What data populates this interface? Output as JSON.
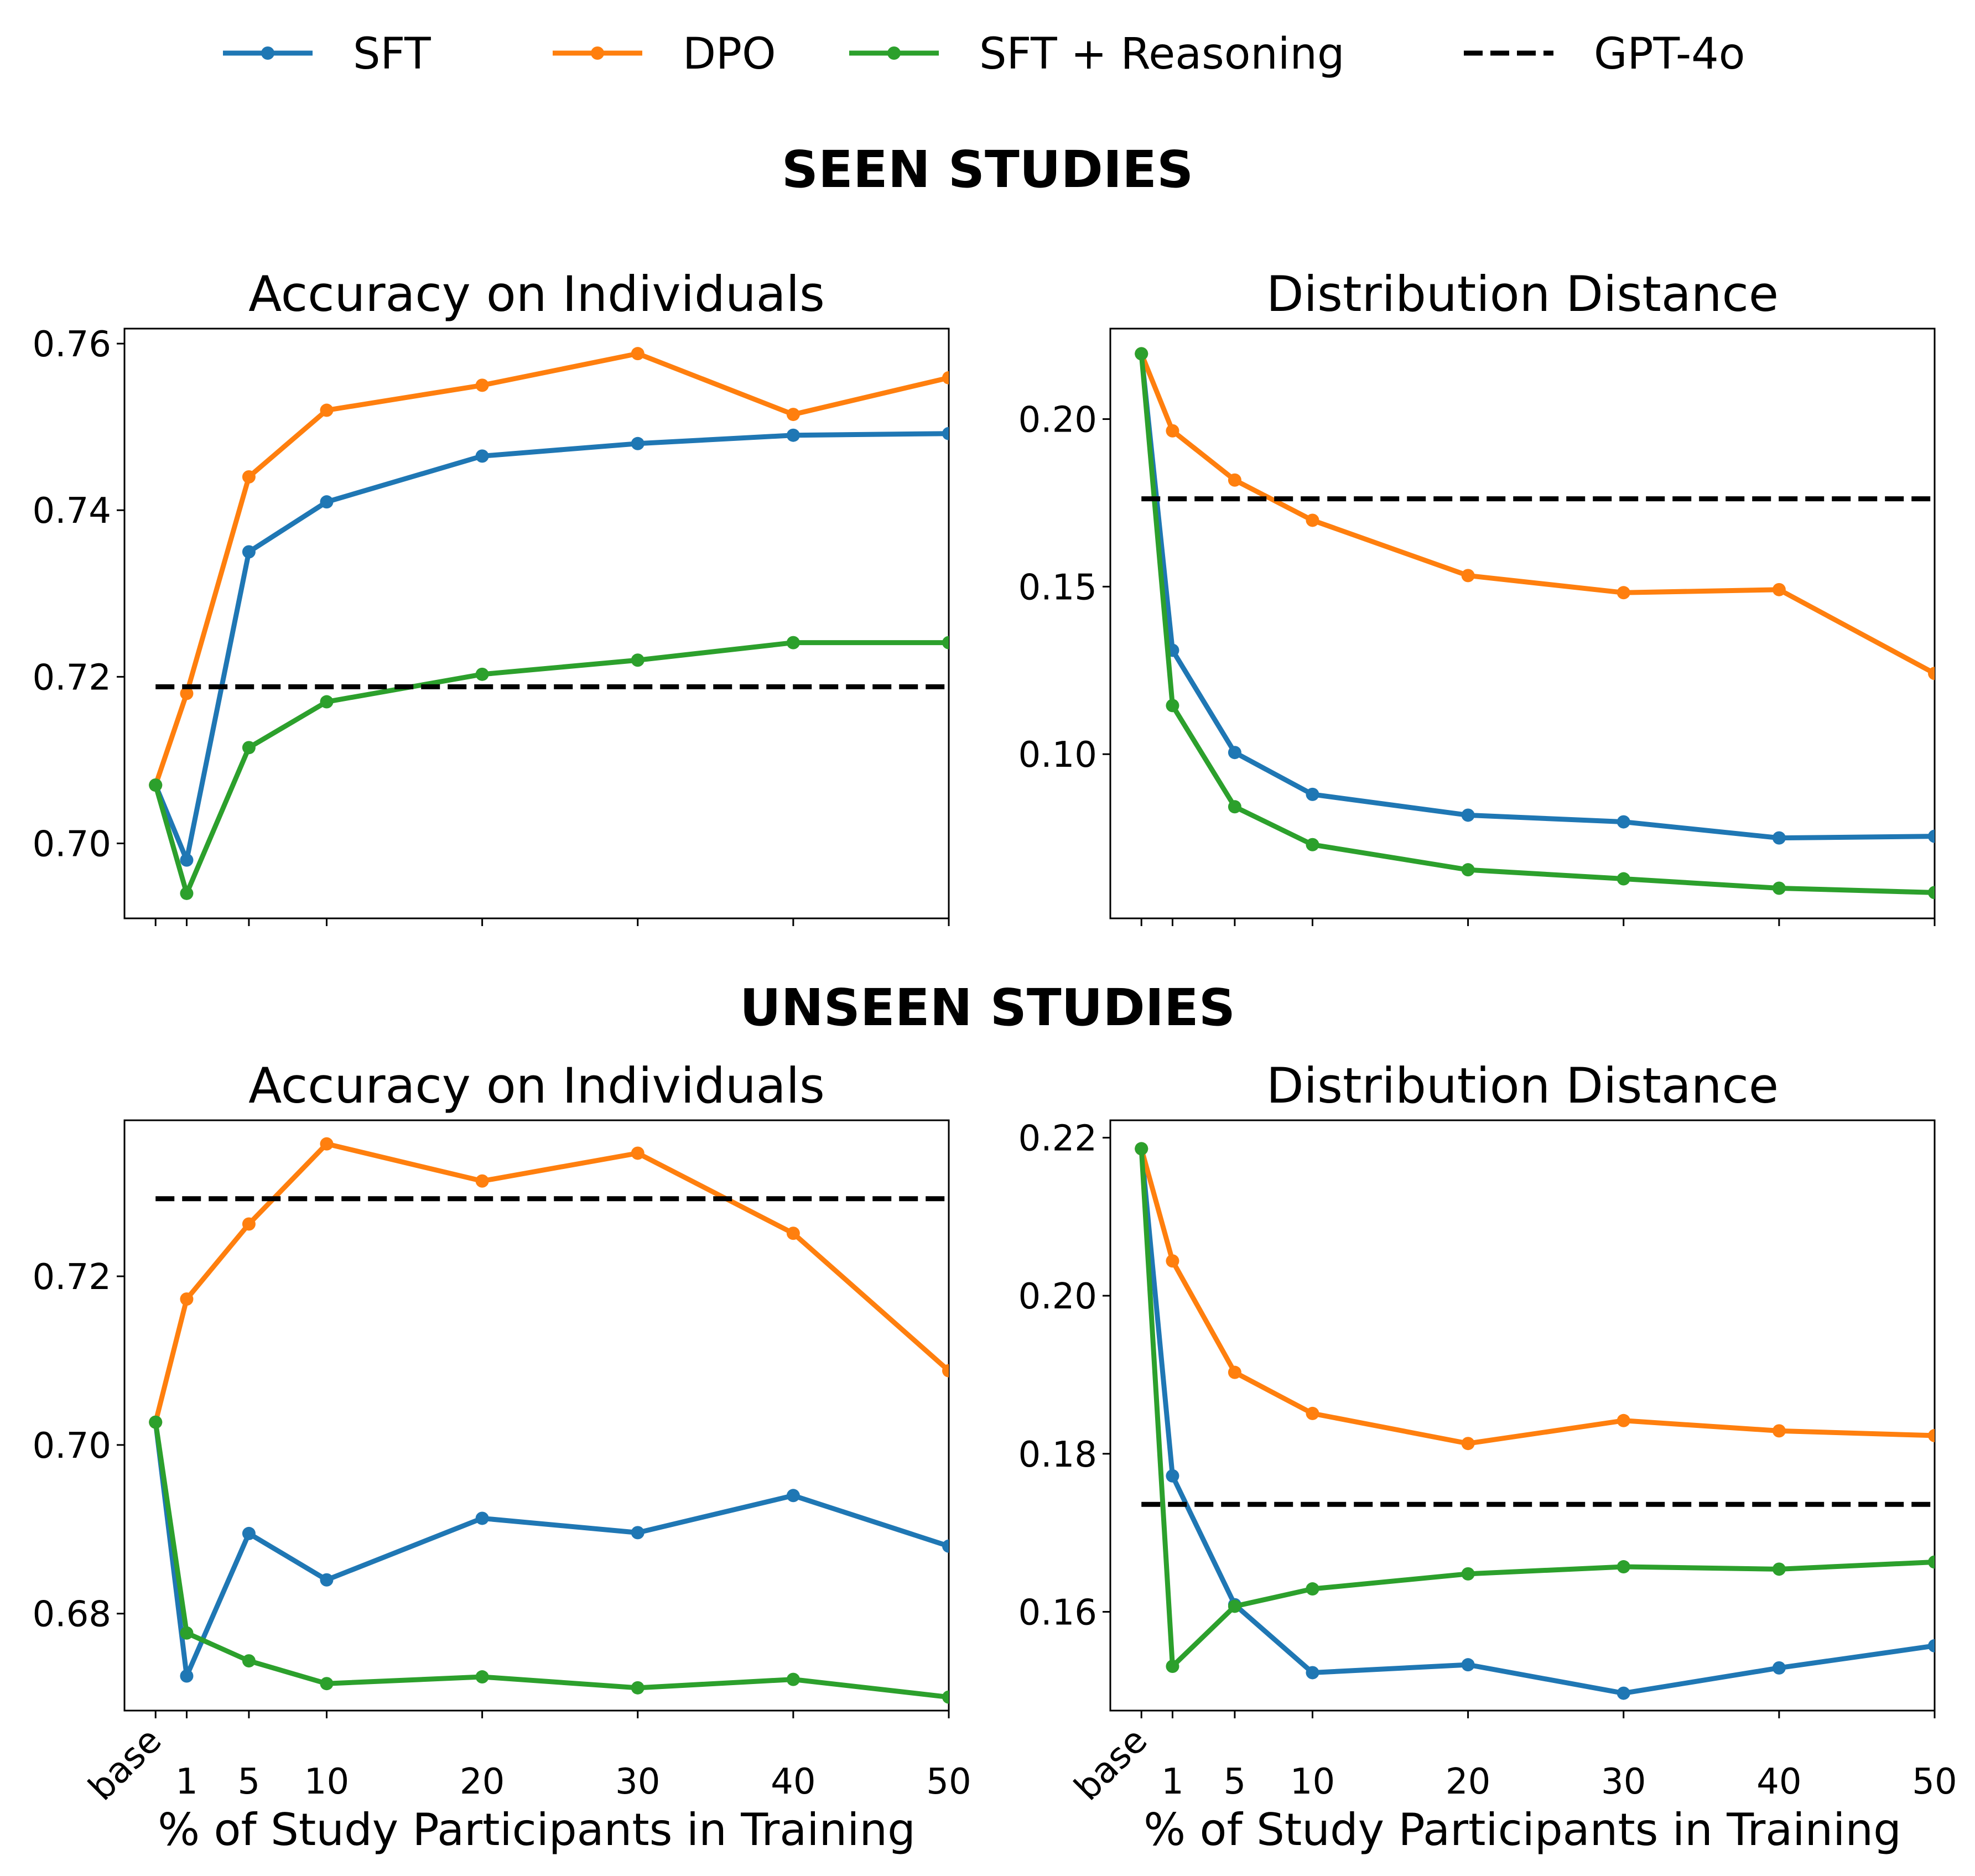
{
  "legend": [
    {
      "name": "SFT",
      "color": "#1f77b4",
      "style": "solid-marker"
    },
    {
      "name": "DPO",
      "color": "#ff7f0e",
      "style": "solid-marker"
    },
    {
      "name": "SFT + Reasoning",
      "color": "#2ca02c",
      "style": "solid-marker"
    },
    {
      "name": "GPT-4o",
      "color": "#000000",
      "style": "dashed"
    }
  ],
  "sections": {
    "seen": "SEEN STUDIES",
    "unseen": "UNSEEN STUDIES"
  },
  "shared_x": {
    "label": "% of Study Participants in Training",
    "tick_labels": [
      "base",
      "1",
      "5",
      "10",
      "20",
      "30",
      "40",
      "50"
    ],
    "tick_values": [
      -1,
      1,
      5,
      10,
      20,
      30,
      40,
      50
    ]
  },
  "chart_data": [
    {
      "id": "seen-accuracy",
      "section": "SEEN STUDIES",
      "type": "line",
      "title": "Accuracy on Individuals",
      "xlabel": "",
      "ylabel": "",
      "x": [
        -1,
        1,
        5,
        10,
        20,
        30,
        40,
        50
      ],
      "xlim": [
        -3,
        50
      ],
      "ylim": [
        0.691,
        0.7618
      ],
      "yticks": [
        0.7,
        0.72,
        0.74,
        0.76
      ],
      "ytick_labels": [
        "0.70",
        "0.72",
        "0.74",
        "0.76"
      ],
      "series": [
        {
          "name": "SFT",
          "values": [
            0.707,
            0.698,
            0.735,
            0.741,
            0.7465,
            0.748,
            0.749,
            0.7492
          ]
        },
        {
          "name": "DPO",
          "values": [
            0.707,
            0.718,
            0.744,
            0.752,
            0.755,
            0.7588,
            0.7515,
            0.7559
          ]
        },
        {
          "name": "SFT + Reasoning",
          "values": [
            0.707,
            0.694,
            0.7115,
            0.717,
            0.7203,
            0.722,
            0.7241,
            0.7241
          ]
        }
      ],
      "reference": {
        "name": "GPT-4o",
        "value": 0.7188
      }
    },
    {
      "id": "seen-distance",
      "section": "SEEN STUDIES",
      "type": "line",
      "title": "Distribution Distance",
      "xlabel": "",
      "ylabel": "",
      "x": [
        -1,
        1,
        5,
        10,
        20,
        30,
        40,
        50
      ],
      "xlim": [
        -3,
        50
      ],
      "ylim": [
        0.051,
        0.227
      ],
      "yticks": [
        0.1,
        0.15,
        0.2
      ],
      "ytick_labels": [
        "0.10",
        "0.15",
        "0.20"
      ],
      "series": [
        {
          "name": "SFT",
          "values": [
            0.2195,
            0.131,
            0.1005,
            0.088,
            0.0818,
            0.0798,
            0.075,
            0.0755
          ]
        },
        {
          "name": "DPO",
          "values": [
            0.2195,
            0.1965,
            0.1818,
            0.1698,
            0.1533,
            0.1482,
            0.1491,
            0.1241
          ]
        },
        {
          "name": "SFT + Reasoning",
          "values": [
            0.2195,
            0.1145,
            0.0843,
            0.073,
            0.0655,
            0.0628,
            0.06,
            0.0587
          ]
        }
      ],
      "reference": {
        "name": "GPT-4o",
        "value": 0.1762
      }
    },
    {
      "id": "unseen-accuracy",
      "section": "UNSEEN STUDIES",
      "type": "line",
      "title": "Accuracy on Individuals",
      "xlabel": "% of Study Participants in Training",
      "ylabel": "",
      "x": [
        -1,
        1,
        5,
        10,
        20,
        30,
        40,
        50
      ],
      "xlim": [
        -3,
        50
      ],
      "ylim": [
        0.6685,
        0.7385
      ],
      "yticks": [
        0.68,
        0.7,
        0.72
      ],
      "ytick_labels": [
        "0.68",
        "0.70",
        "0.72"
      ],
      "series": [
        {
          "name": "SFT",
          "values": [
            0.7027,
            0.6726,
            0.6895,
            0.684,
            0.6913,
            0.6896,
            0.694,
            0.688
          ]
        },
        {
          "name": "DPO",
          "values": [
            0.7027,
            0.7173,
            0.7262,
            0.7357,
            0.7313,
            0.7346,
            0.7251,
            0.7088
          ]
        },
        {
          "name": "SFT + Reasoning",
          "values": [
            0.7027,
            0.6777,
            0.6744,
            0.6717,
            0.6725,
            0.6712,
            0.6722,
            0.6701
          ]
        }
      ],
      "reference": {
        "name": "GPT-4o",
        "value": 0.7292
      }
    },
    {
      "id": "unseen-distance",
      "section": "UNSEEN STUDIES",
      "type": "line",
      "title": "Distribution Distance",
      "xlabel": "% of Study Participants in Training",
      "ylabel": "",
      "x": [
        -1,
        1,
        5,
        10,
        20,
        30,
        40,
        50
      ],
      "xlim": [
        -3,
        50
      ],
      "ylim": [
        0.1475,
        0.2222
      ],
      "yticks": [
        0.16,
        0.18,
        0.2,
        0.22
      ],
      "ytick_labels": [
        "0.16",
        "0.18",
        "0.20",
        "0.22"
      ],
      "series": [
        {
          "name": "SFT",
          "values": [
            0.2186,
            0.1772,
            0.1609,
            0.1523,
            0.1533,
            0.1497,
            0.1529,
            0.1557
          ]
        },
        {
          "name": "DPO",
          "values": [
            0.2186,
            0.2044,
            0.1903,
            0.1851,
            0.1813,
            0.1842,
            0.1829,
            0.1823
          ]
        },
        {
          "name": "SFT + Reasoning",
          "values": [
            0.2186,
            0.1531,
            0.1607,
            0.1629,
            0.1648,
            0.1657,
            0.1654,
            0.1663
          ]
        }
      ],
      "reference": {
        "name": "GPT-4o",
        "value": 0.1736
      }
    }
  ]
}
